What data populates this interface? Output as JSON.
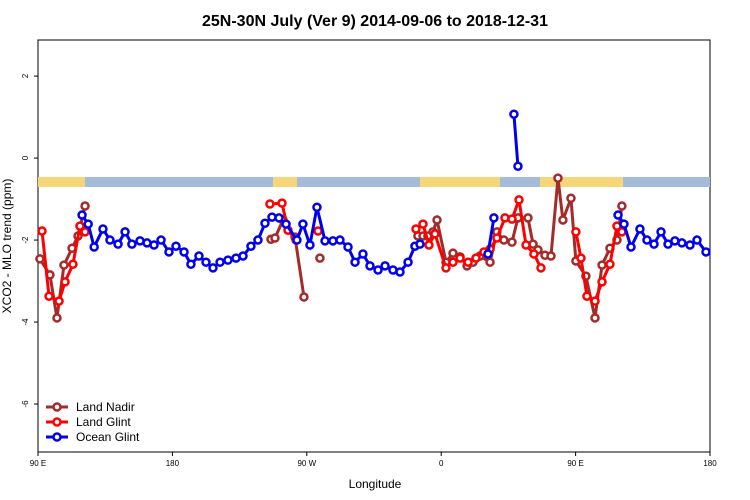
{
  "chart_data": {
    "type": "line",
    "title": "25N-30N July (Ver 9)   2014-09-06 to 2018-12-31",
    "x_label": "Longitude",
    "y_label": "XCO2 - MLO trend (ppm)",
    "xlim": [
      90,
      540
    ],
    "ylim": [
      -7.17,
      2.88
    ],
    "xticks": [
      {
        "value": 90,
        "label": "90 E"
      },
      180,
      {
        "value": 270,
        "label": "90 W"
      },
      {
        "value": 360,
        "label": "0"
      },
      {
        "value": 450,
        "label": "90 E"
      },
      {
        "value": 540,
        "label": "180"
      }
    ],
    "yticks": [
      2,
      0,
      -2,
      -4,
      -6
    ],
    "legend": "bottom-left",
    "series": [
      {
        "name": "Land Nadir",
        "color": "#a52a2a",
        "x": [
          91.3,
          98,
          102.7,
          107.4,
          112.8,
          116.8,
          121.5,
          null,
          246,
          248.7,
          254.1,
          262.1,
          268.1,
          null,
          278.8,
          null,
          344.4,
          347.8,
          351.1,
          354.5,
          357.2,
          363.2,
          367.9,
          372.6,
          377.3,
          381.3,
          386,
          392.7,
          397.3,
          402,
          407.4,
          411.4,
          418.1,
          421.5,
          424.8,
          429.5,
          433.5,
          438.2,
          441.5,
          446.9,
          450.2,
          456.9,
          463,
          467.7,
          473,
          477.7,
          481
        ],
        "values": [
          -2.46,
          -2.85,
          -3.9,
          -2.61,
          -2.2,
          -1.9,
          -1.17,
          null,
          -1.98,
          -1.95,
          -1.51,
          -1.93,
          -3.39,
          null,
          -2.44,
          null,
          -1.9,
          -1.9,
          -1.9,
          -1.8,
          -1.51,
          -2.54,
          -2.32,
          -2.41,
          -2.63,
          -2.54,
          -2.39,
          -2.54,
          -1.8,
          -2.0,
          -2.05,
          -1.46,
          -1.46,
          -2.1,
          -2.24,
          -2.37,
          -2.39,
          -0.49,
          -1.51,
          -0.98,
          -2.51,
          -2.88,
          -3.9,
          -2.61,
          -2.2,
          -2.0,
          -1.17
        ]
      },
      {
        "name": "Land Glint",
        "color": "#ff0000",
        "x": [
          92.7,
          97.4,
          104.1,
          108.1,
          113.4,
          118.1,
          121.5,
          null,
          245.3,
          253.4,
          257.4,
          262.8,
          null,
          277.5,
          null,
          343.1,
          347.8,
          351.8,
          355.8,
          363.2,
          367.9,
          372.6,
          378,
          383.3,
          388.6,
          392.7,
          397.3,
          402.7,
          407.4,
          412.1,
          416.8,
          422.1,
          426.8,
          null,
          450.2,
          453.6,
          457.6,
          463,
          467.7,
          473,
          477.7,
          481
        ],
        "values": [
          -1.78,
          -3.37,
          -3.49,
          -3.02,
          -2.59,
          -1.66,
          -1.8,
          null,
          -1.12,
          -1.1,
          -1.76,
          -2.0,
          null,
          -1.78,
          null,
          -1.73,
          -1.61,
          -2.12,
          -1.85,
          -2.68,
          -2.54,
          -2.44,
          -2.54,
          -2.44,
          -2.29,
          -2.22,
          -1.95,
          -1.46,
          -1.49,
          -1.02,
          -2.12,
          -2.34,
          -2.68,
          null,
          -1.8,
          -2.44,
          -3.37,
          -3.49,
          -3.02,
          -2.59,
          -1.66,
          -1.8
        ]
      },
      {
        "name": "Ocean Glint",
        "color": "#0000ee",
        "x": [
          119.5,
          123.6,
          127.6,
          133.5,
          138.2,
          143.6,
          148.3,
          152.9,
          158.3,
          163,
          167.7,
          172.4,
          177.7,
          182.4,
          187.8,
          192.4,
          197.8,
          202.5,
          207.2,
          211.9,
          217.2,
          222.6,
          227.3,
          232.6,
          237.3,
          242,
          246.7,
          251.4,
          256.1,
          263.4,
          267.4,
          272.1,
          276.8,
          282.2,
          287.5,
          292.2,
          297.6,
          302.3,
          307.6,
          312.3,
          317.7,
          322.4,
          327.7,
          332.4,
          337.8,
          342.4,
          345.8,
          null,
          391.3,
          395.3,
          null,
          408.7,
          411.4,
          null,
          478.4,
          482.4,
          487.1,
          493.1,
          497.8,
          502.5,
          507.2,
          511.9,
          516.5,
          521.2,
          526.6,
          531.3,
          537.3
        ],
        "values": [
          -1.39,
          -1.61,
          -2.17,
          -1.73,
          -2.0,
          -2.1,
          -1.8,
          -2.1,
          -2.02,
          -2.07,
          -2.12,
          -2.0,
          -2.29,
          -2.15,
          -2.29,
          -2.59,
          -2.39,
          -2.54,
          -2.68,
          -2.54,
          -2.49,
          -2.44,
          -2.39,
          -2.15,
          -2.0,
          -1.59,
          -1.44,
          -1.46,
          -1.61,
          -2.0,
          -1.61,
          -2.12,
          -1.2,
          -2.02,
          -2.02,
          -2.0,
          -2.17,
          -2.54,
          -2.34,
          -2.63,
          -2.73,
          -2.63,
          -2.73,
          -2.78,
          -2.54,
          -2.15,
          -2.1,
          null,
          -2.34,
          -1.46,
          null,
          1.07,
          -0.2,
          null,
          -1.39,
          -1.61,
          -2.17,
          -1.73,
          -2.0,
          -2.1,
          -1.8,
          -2.1,
          -2.02,
          -2.07,
          -2.12,
          -2.0,
          -2.29
        ]
      }
    ]
  }
}
